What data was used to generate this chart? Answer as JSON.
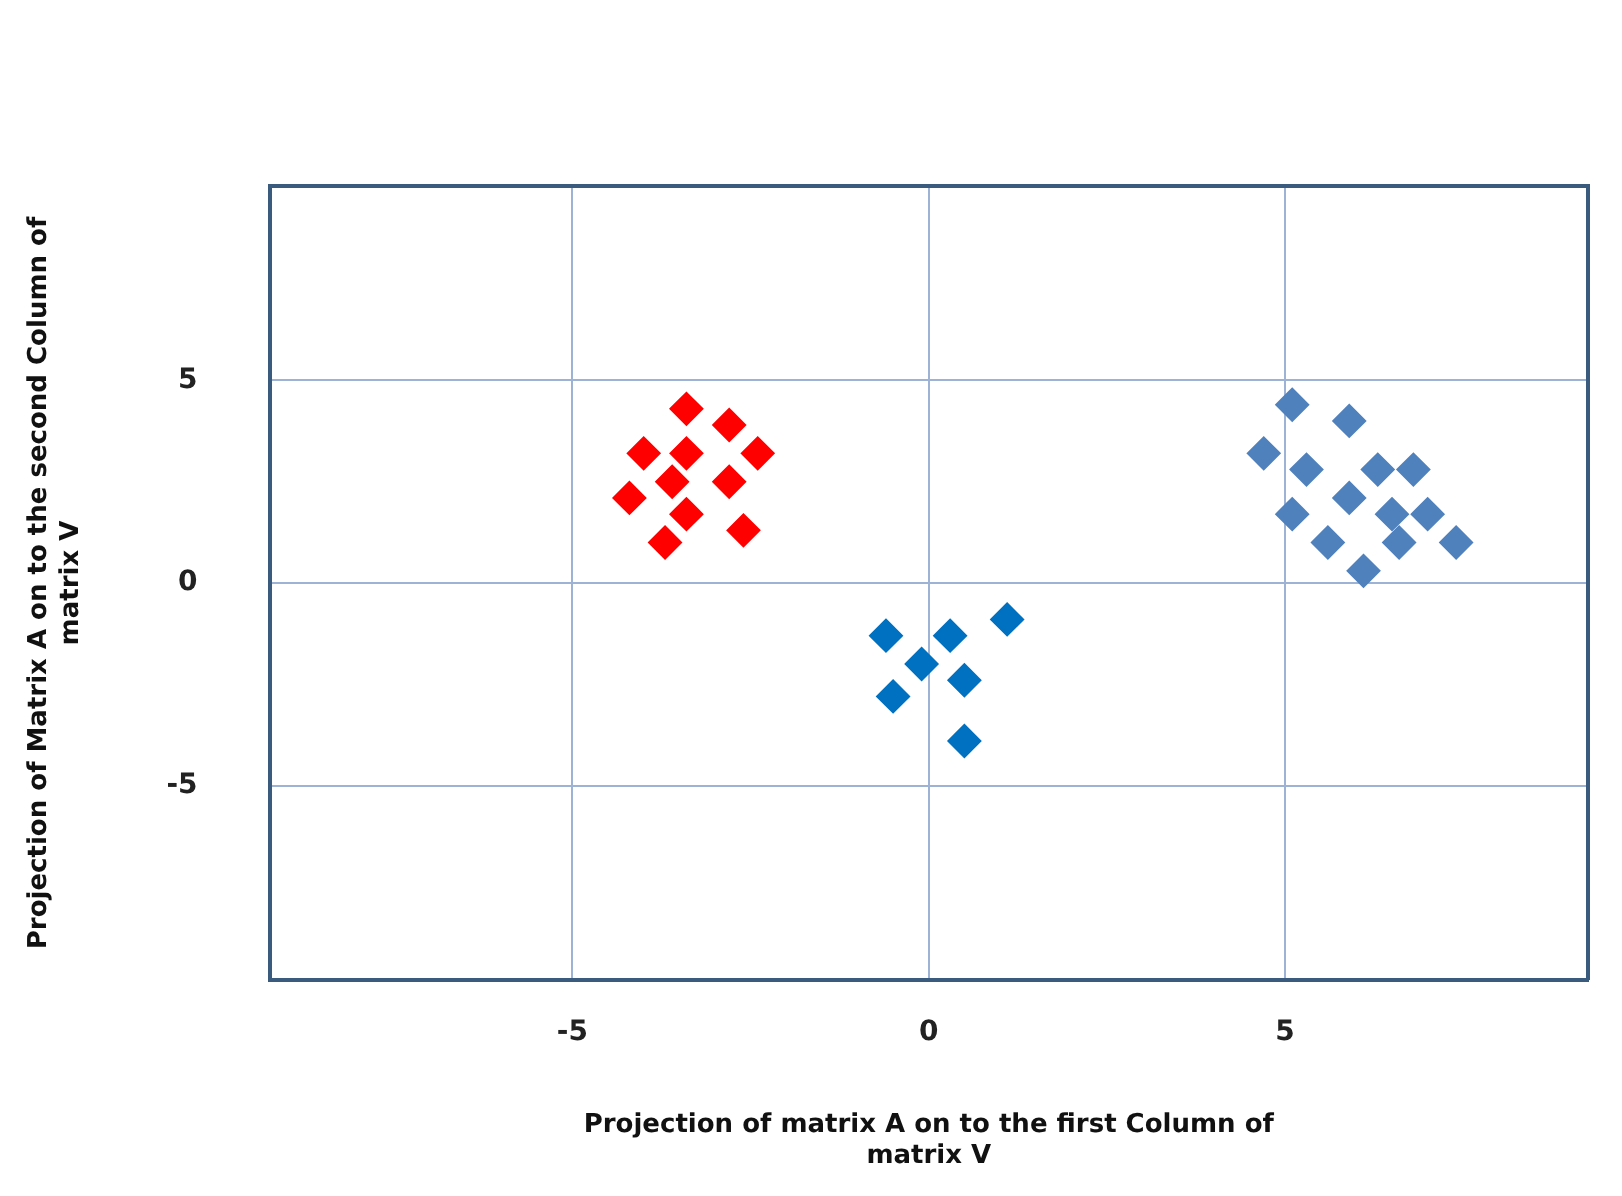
{
  "chart_data": {
    "type": "scatter",
    "xlabel": "Projection of matrix A on to the first Column of matrix V",
    "ylabel": "Projection of Matrix A on to the second Column of matrix V",
    "xlim": [
      -9.25,
      9.25
    ],
    "ylim": [
      -9.8,
      9.8
    ],
    "xticks": [
      -5,
      0,
      5
    ],
    "yticks": [
      -5,
      0,
      5
    ],
    "grid": true,
    "legend": false,
    "marker": "diamond",
    "series": [
      {
        "color": "#ff0000",
        "x": [
          -3.4,
          -2.8,
          -4.0,
          -3.4,
          -2.4,
          -3.6,
          -2.8,
          -4.2,
          -3.4,
          -2.6,
          -3.7
        ],
        "values": [
          4.3,
          3.9,
          3.2,
          3.2,
          3.2,
          2.5,
          2.5,
          2.1,
          1.7,
          1.3,
          1.0
        ]
      },
      {
        "color": "#0070c0",
        "x": [
          -0.6,
          0.3,
          1.1,
          -0.1,
          0.5,
          -0.5,
          0.5
        ],
        "values": [
          -1.3,
          -1.3,
          -0.9,
          -2.0,
          -2.4,
          -2.8,
          -3.9
        ]
      },
      {
        "color": "#4f81bd",
        "x": [
          5.1,
          5.9,
          4.7,
          5.3,
          6.3,
          6.8,
          5.9,
          5.1,
          6.5,
          7.0,
          5.6,
          6.6,
          7.4,
          6.1
        ],
        "values": [
          4.4,
          4.0,
          3.2,
          2.8,
          2.8,
          2.8,
          2.1,
          1.7,
          1.7,
          1.7,
          1.0,
          1.0,
          1.0,
          0.3
        ]
      }
    ]
  }
}
